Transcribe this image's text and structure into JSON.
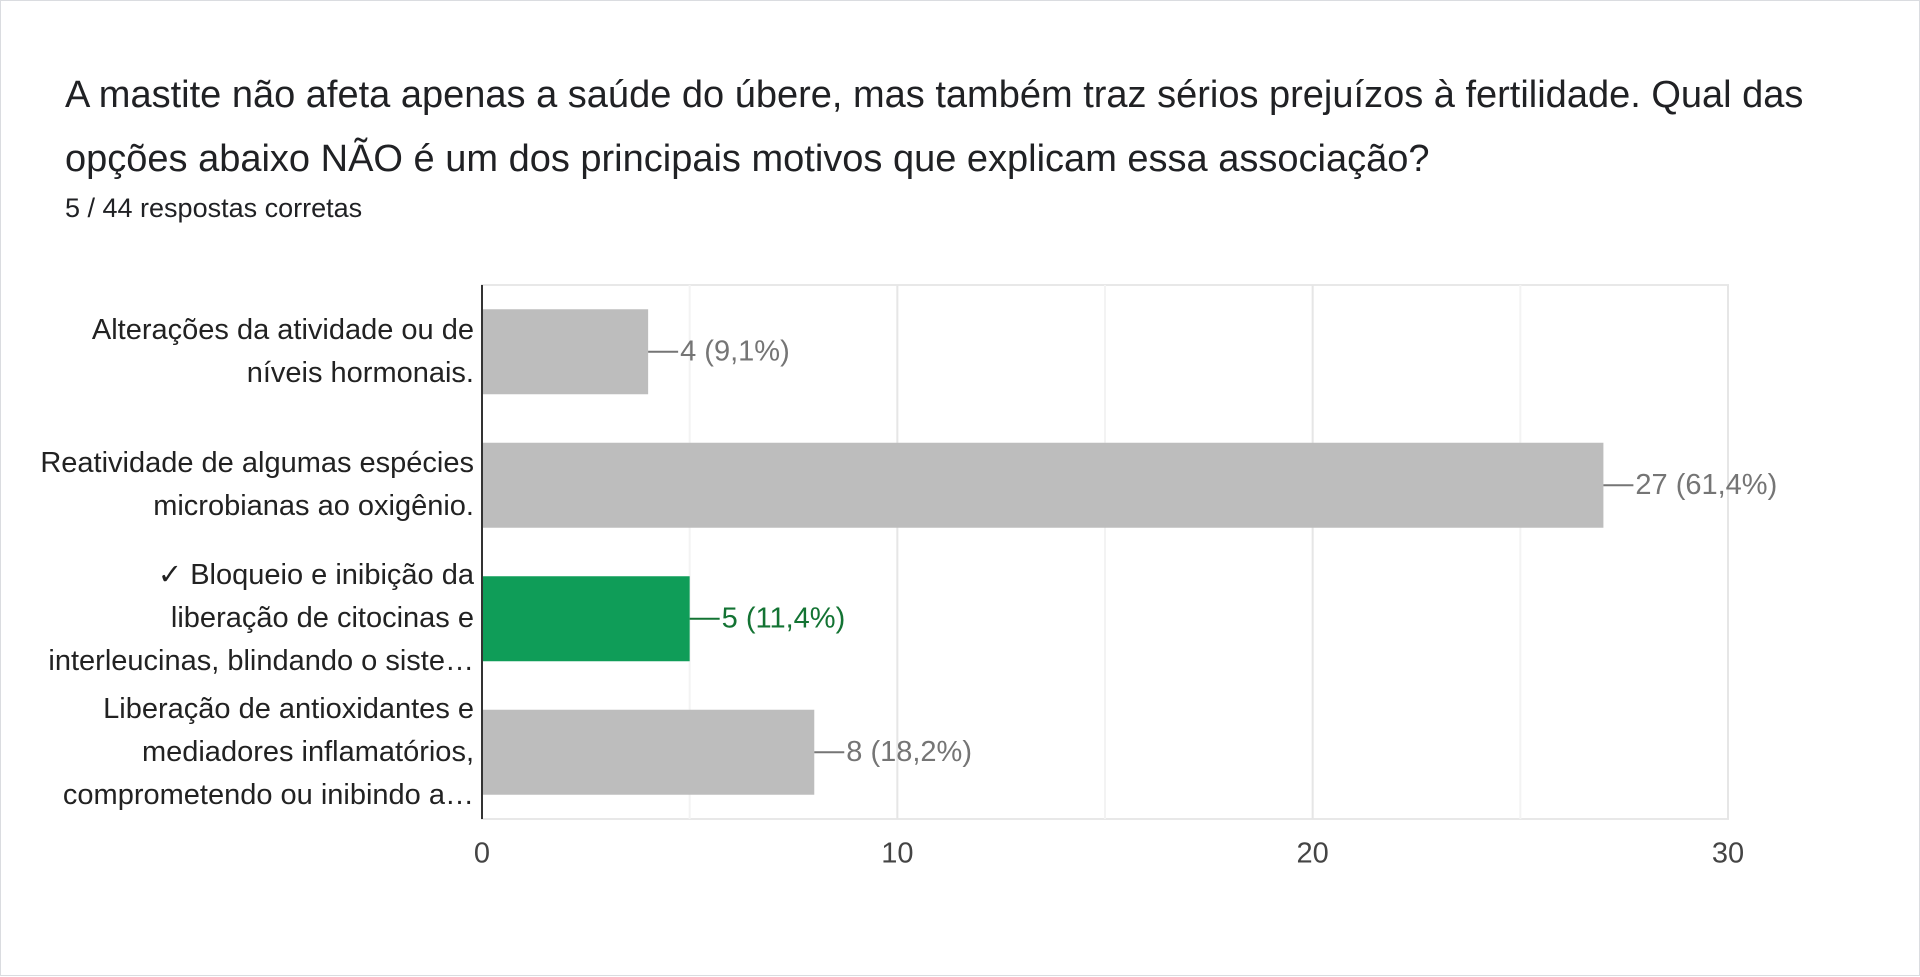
{
  "chart_data": {
    "type": "bar",
    "orientation": "horizontal",
    "title": "A mastite não afeta apenas a saúde do úbere, mas também traz sérios prejuízos à fertilidade. Qual das opções abaixo NÃO é um dos principais motivos que explicam essa associação?",
    "subtitle": "5 / 44 respostas corretas",
    "categories": [
      "Alterações da atividade ou de\nníveis hormonais.",
      "Reatividade de algumas espécies\nmicrobianas ao oxigênio.",
      "✓ Bloqueio e inibição da\nliberação de citocinas e\ninterleucinas, blindando o siste…",
      "Liberação de antioxidantes e\nmediadores inflamatórios,\ncomprometendo ou inibindo a…"
    ],
    "values": [
      4,
      27,
      5,
      8
    ],
    "value_labels": [
      "4 (9,1%)",
      "27 (61,4%)",
      "5 (11,4%)",
      "8 (18,2%)"
    ],
    "colors": [
      "#bdbdbd",
      "#bdbdbd",
      "#0f9d58",
      "#bdbdbd"
    ],
    "label_colors": [
      "#757575",
      "#757575",
      "#137333",
      "#757575"
    ],
    "xlim": [
      0,
      30
    ],
    "xticks": [
      0,
      10,
      20,
      30
    ],
    "minor_xticks": [
      5,
      15,
      25
    ],
    "grid": true
  }
}
